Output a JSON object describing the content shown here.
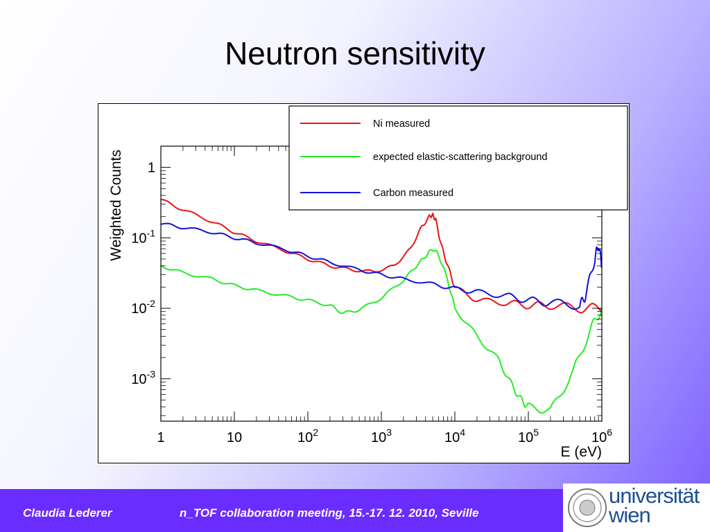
{
  "slide": {
    "title": "Neutron sensitivity",
    "author": "Claudia Lederer",
    "meeting": "n_TOF collaboration meeting, 15.-17. 12. 2010, Seville",
    "logo_line1": "universität",
    "logo_line2": "wien"
  },
  "colors": {
    "ni": "#ee1111",
    "bg": "#22ee22",
    "carbon": "#1111dd",
    "footer": "#6a2cff",
    "logo": "#1d4f91"
  },
  "chart_data": {
    "type": "line",
    "xlabel": "E (eV)",
    "ylabel": "Weighted Counts",
    "xscale": "log",
    "yscale": "log",
    "xlim": [
      1,
      1000000
    ],
    "ylim": [
      0.00025,
      2
    ],
    "x_ticks": [
      {
        "value": 1,
        "base": "1",
        "exp": ""
      },
      {
        "value": 10,
        "base": "10",
        "exp": ""
      },
      {
        "value": 100,
        "base": "10",
        "exp": "2"
      },
      {
        "value": 1000,
        "base": "10",
        "exp": "3"
      },
      {
        "value": 10000,
        "base": "10",
        "exp": "4"
      },
      {
        "value": 100000,
        "base": "10",
        "exp": "5"
      },
      {
        "value": 1000000,
        "base": "10",
        "exp": "6"
      }
    ],
    "y_ticks": [
      {
        "value": 1,
        "base": "1",
        "exp": ""
      },
      {
        "value": 0.1,
        "base": "10",
        "exp": "-1"
      },
      {
        "value": 0.01,
        "base": "10",
        "exp": "-2"
      },
      {
        "value": 0.001,
        "base": "10",
        "exp": "-3"
      }
    ],
    "legend_position": "top-right",
    "series": [
      {
        "name": "Ni measured",
        "x": [
          1,
          2,
          5,
          10,
          20,
          50,
          100,
          200,
          400,
          800,
          1500,
          2500,
          3500,
          4500,
          5000,
          5500,
          6500,
          8000,
          10000,
          20000,
          50000,
          100000,
          200000,
          500000,
          1000000
        ],
        "y": [
          0.35,
          0.25,
          0.17,
          0.12,
          0.09,
          0.065,
          0.05,
          0.04,
          0.035,
          0.033,
          0.04,
          0.07,
          0.14,
          0.2,
          0.21,
          0.18,
          0.08,
          0.04,
          0.02,
          0.013,
          0.012,
          0.011,
          0.011,
          0.01,
          0.01
        ]
      },
      {
        "name": "expected elastic-scattering background",
        "x": [
          1,
          2,
          5,
          10,
          20,
          50,
          100,
          200,
          300,
          500,
          1000,
          2000,
          3000,
          4000,
          5000,
          6000,
          8000,
          10000,
          20000,
          40000,
          60000,
          80000,
          100000,
          200000,
          400000,
          700000,
          1000000
        ],
        "y": [
          0.04,
          0.032,
          0.026,
          0.021,
          0.018,
          0.015,
          0.013,
          0.011,
          0.0085,
          0.0095,
          0.014,
          0.025,
          0.04,
          0.055,
          0.07,
          0.058,
          0.025,
          0.01,
          0.004,
          0.0018,
          0.0008,
          0.0005,
          0.0004,
          0.00035,
          0.0012,
          0.005,
          0.01
        ]
      },
      {
        "name": "Carbon measured",
        "x": [
          1,
          2,
          5,
          10,
          20,
          50,
          100,
          200,
          500,
          1000,
          2000,
          5000,
          10000,
          20000,
          50000,
          100000,
          200000,
          500000,
          600000,
          800000,
          900000,
          1000000
        ],
        "y": [
          0.16,
          0.14,
          0.12,
          0.1,
          0.085,
          0.068,
          0.055,
          0.045,
          0.035,
          0.03,
          0.026,
          0.022,
          0.019,
          0.017,
          0.015,
          0.013,
          0.012,
          0.011,
          0.015,
          0.05,
          0.08,
          0.04
        ]
      }
    ]
  }
}
